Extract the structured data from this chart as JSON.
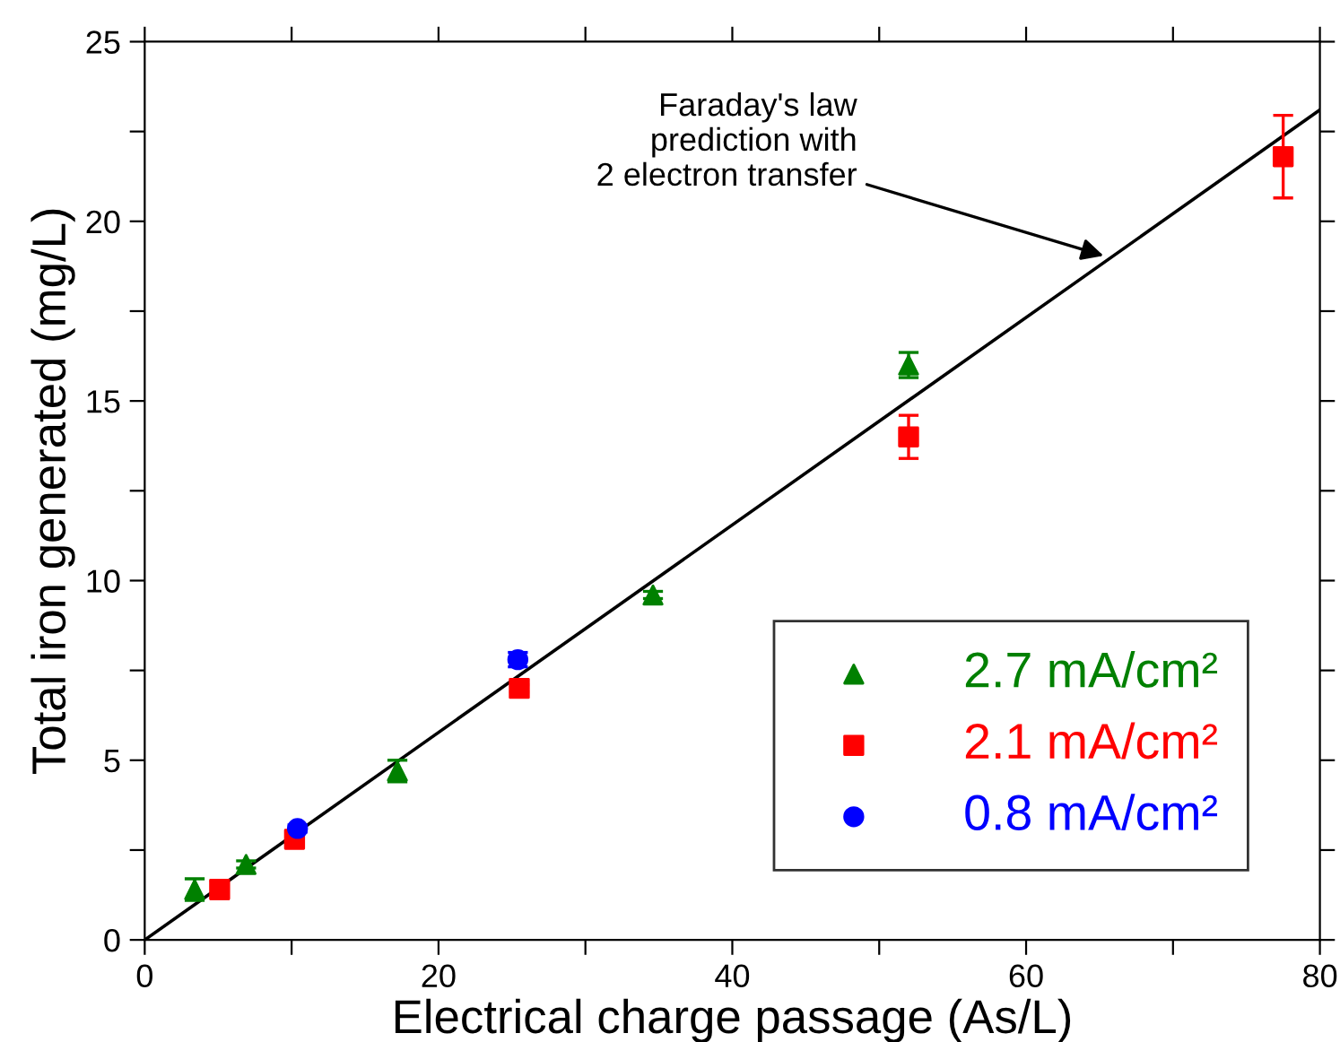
{
  "chart_data": {
    "type": "scatter",
    "xlabel": "Electrical charge passage (As/L)",
    "ylabel": "Total iron generated (mg/L)",
    "xlim": [
      0,
      80
    ],
    "ylim": [
      0,
      25
    ],
    "xticks": [
      0,
      {
        "value": 10,
        "label": null
      },
      20,
      {
        "value": 30,
        "label": null
      },
      40,
      {
        "value": 50,
        "label": null
      },
      60,
      {
        "value": 70,
        "label": null
      },
      80
    ],
    "yticks": [
      0,
      {
        "value": 2.5,
        "label": null
      },
      5,
      {
        "value": 7.5,
        "label": null
      },
      10,
      {
        "value": 12.5,
        "label": null
      },
      15,
      {
        "value": 17.5,
        "label": null
      },
      20,
      {
        "value": 22.5,
        "label": null
      },
      25
    ],
    "grid": false,
    "legend": "bottom right",
    "annotations": [
      {
        "text": "Faraday's law\nprediction with\n2 electron transfer",
        "x": 65.6,
        "y": 19.0
      }
    ],
    "series": [
      {
        "type": "line",
        "color": "#000000",
        "x": [
          0,
          80
        ],
        "values": [
          0,
          23.1
        ],
        "marker": "none",
        "line_style": "solid"
      },
      {
        "name": "2.7 mA/cm²",
        "color": "#008000",
        "marker": "triangle",
        "x": [
          3.4,
          6.9,
          17.2,
          34.6,
          52.0
        ],
        "values": [
          1.4,
          2.1,
          4.7,
          9.6,
          16.0
        ],
        "errors": [
          0.3,
          0.1,
          0.3,
          0.1,
          0.35
        ]
      },
      {
        "name": "2.1 mA/cm²",
        "color": "#ff0000",
        "marker": "square",
        "x": [
          5.1,
          10.2,
          25.5,
          52.0,
          77.5
        ],
        "values": [
          1.4,
          2.8,
          7.0,
          14.0,
          21.8
        ],
        "errors": [
          0.25,
          0.2,
          0.1,
          0.6,
          1.15
        ]
      },
      {
        "name": "0.8 mA/cm²",
        "color": "#0000ff",
        "marker": "circle",
        "x": [
          10.4,
          25.4
        ],
        "values": [
          3.1,
          7.8
        ],
        "errors": [
          0.1,
          0.2
        ]
      }
    ]
  }
}
